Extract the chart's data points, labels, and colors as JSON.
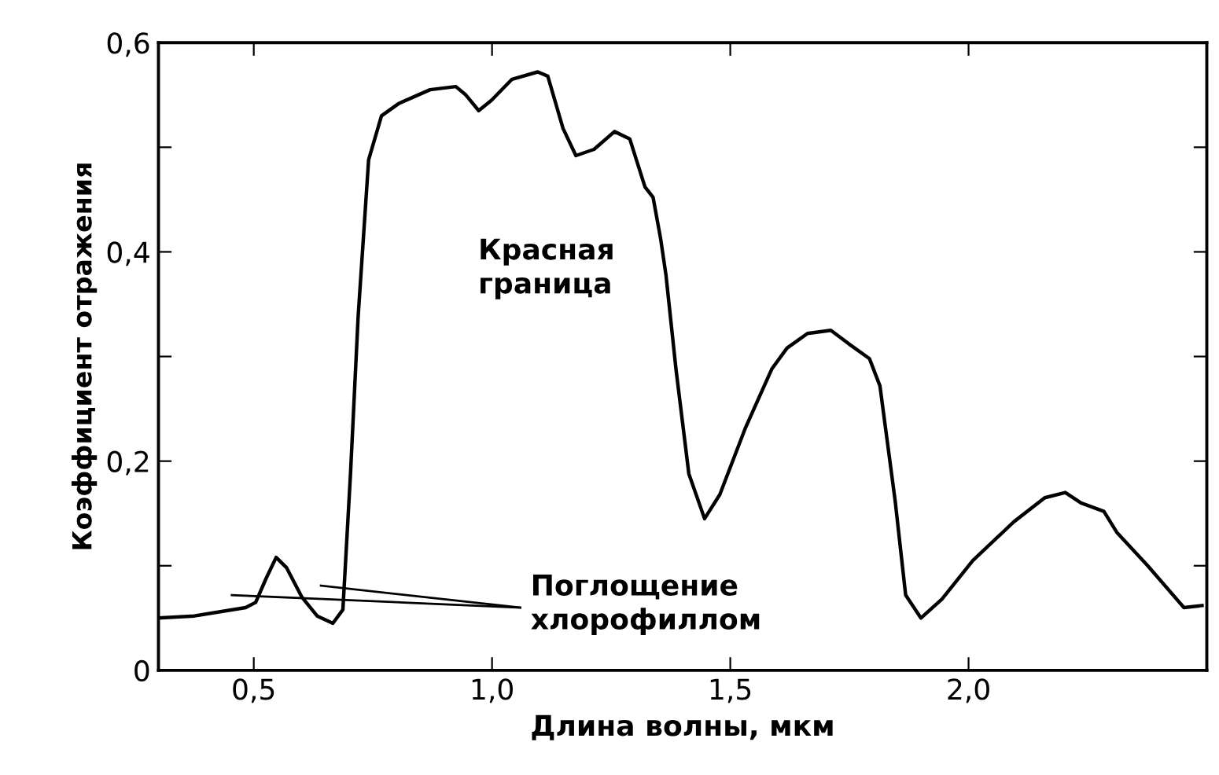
{
  "chart_data": {
    "type": "line",
    "xlabel": "Длина волны, мкм",
    "ylabel": "Коэффициент отражения",
    "xlim": [
      0.3,
      2.5
    ],
    "ylim": [
      0,
      0.6
    ],
    "xticks": [
      {
        "value": 0.5,
        "label": "0,5"
      },
      {
        "value": 1.0,
        "label": "1,0"
      },
      {
        "value": 1.5,
        "label": "1,5"
      },
      {
        "value": 2.0,
        "label": "2,0"
      }
    ],
    "yticks": [
      {
        "value": 0,
        "label": "0"
      },
      {
        "value": 0.1,
        "label": null
      },
      {
        "value": 0.2,
        "label": "0,2"
      },
      {
        "value": 0.3,
        "label": null
      },
      {
        "value": 0.4,
        "label": "0,4"
      },
      {
        "value": 0.5,
        "label": null
      },
      {
        "value": 0.6,
        "label": "0,6"
      }
    ],
    "grid": false,
    "legend": false,
    "marker": "none",
    "line_style": "solid",
    "annotations": [
      "Красная\nграница",
      "Поглощение\nхлорофиллом"
    ],
    "series": [
      {
        "color": "#000000",
        "x": [
          0.3,
          0.375,
          0.483,
          0.504,
          0.526,
          0.547,
          0.569,
          0.601,
          0.633,
          0.666,
          0.687,
          0.703,
          0.719,
          0.741,
          0.768,
          0.805,
          0.87,
          0.924,
          0.945,
          0.972,
          0.999,
          1.042,
          1.096,
          1.117,
          1.149,
          1.176,
          1.214,
          1.257,
          1.289,
          1.321,
          1.338,
          1.354,
          1.365,
          1.386,
          1.413,
          1.446,
          1.478,
          1.532,
          1.587,
          1.619,
          1.662,
          1.711,
          1.749,
          1.792,
          1.814,
          1.846,
          1.868,
          1.9,
          1.944,
          2.009,
          2.095,
          2.16,
          2.203,
          2.236,
          2.284,
          2.311,
          2.376,
          2.452,
          2.49
        ],
        "values": [
          0.05,
          0.052,
          0.06,
          0.065,
          0.088,
          0.108,
          0.098,
          0.07,
          0.052,
          0.045,
          0.058,
          0.188,
          0.338,
          0.488,
          0.53,
          0.542,
          0.555,
          0.558,
          0.55,
          0.535,
          0.545,
          0.565,
          0.572,
          0.568,
          0.518,
          0.492,
          0.498,
          0.515,
          0.508,
          0.462,
          0.452,
          0.412,
          0.378,
          0.288,
          0.188,
          0.145,
          0.168,
          0.232,
          0.288,
          0.308,
          0.322,
          0.325,
          0.312,
          0.298,
          0.272,
          0.162,
          0.072,
          0.05,
          0.068,
          0.105,
          0.142,
          0.165,
          0.17,
          0.16,
          0.152,
          0.132,
          0.1,
          0.06,
          0.062
        ]
      }
    ]
  }
}
